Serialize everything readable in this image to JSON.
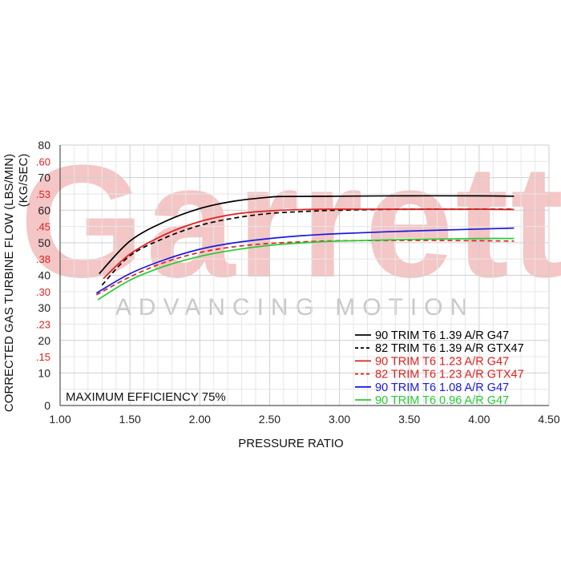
{
  "chart_data": {
    "type": "line",
    "xlabel": "PRESSURE RATIO",
    "ylabel": "CORRECTED GAS TURBINE FLOW (LBS/MIN)",
    "ylabel_secondary": "(KG/SEC)",
    "xlim": [
      1.0,
      4.5
    ],
    "ylim": [
      0,
      80
    ],
    "x_ticks": [
      "1.00",
      "1.50",
      "2.00",
      "2.50",
      "3.00",
      "3.50",
      "4.00",
      "4.50"
    ],
    "y_ticks": [
      "0",
      "10",
      "20",
      "30",
      "40",
      "50",
      "60",
      "70",
      "80"
    ],
    "y_ticks_secondary": [
      ".15",
      ".23",
      ".30",
      ".38",
      ".45",
      ".53",
      ".60"
    ],
    "grid": true,
    "legend_position": "bottom-right",
    "annotation": "MAXIMUM EFFICIENCY 75%",
    "watermark": {
      "brand": "Garrett",
      "tagline": "ADVANCING MOTION"
    },
    "series": [
      {
        "name": "90 TRIM T6 1.39 A/R G47",
        "color": "#000000",
        "dash": "solid",
        "x": [
          1.28,
          1.5,
          1.75,
          2.0,
          2.25,
          2.5,
          2.6,
          3.0,
          3.5,
          4.0,
          4.25
        ],
        "y": [
          40.5,
          50.5,
          56.5,
          60.5,
          62.8,
          64.0,
          64.2,
          64.3,
          64.4,
          64.4,
          64.3
        ]
      },
      {
        "name": "82 TRIM T6 1.39 A/R GTX47",
        "color": "#000000",
        "dash": "dashed",
        "x": [
          1.3,
          1.5,
          1.75,
          2.0,
          2.25,
          2.5,
          2.75,
          3.0,
          3.5,
          4.0,
          4.25
        ],
        "y": [
          37.0,
          46.0,
          51.5,
          55.3,
          57.6,
          59.0,
          59.6,
          60.0,
          60.3,
          60.3,
          60.3
        ]
      },
      {
        "name": "90 TRIM T6 1.23 A/R G47",
        "color": "#e02020",
        "dash": "solid",
        "x": [
          1.31,
          1.5,
          1.75,
          2.0,
          2.25,
          2.5,
          2.75,
          3.0,
          3.5,
          4.0,
          4.25
        ],
        "y": [
          39.0,
          46.5,
          52.5,
          56.5,
          58.8,
          59.8,
          60.2,
          60.3,
          60.3,
          60.3,
          60.2
        ]
      },
      {
        "name": "82 TRIM T6 1.23 A/R GTX47",
        "color": "#e02020",
        "dash": "dashed",
        "x": [
          1.26,
          1.5,
          1.75,
          2.0,
          2.25,
          2.5,
          2.75,
          3.0,
          3.5,
          4.0,
          4.25
        ],
        "y": [
          34.0,
          39.5,
          44.0,
          47.0,
          48.8,
          49.8,
          50.3,
          50.6,
          50.7,
          50.6,
          50.5
        ]
      },
      {
        "name": "90 TRIM T6 1.08 A/R G47",
        "color": "#1a1adf",
        "dash": "solid",
        "x": [
          1.26,
          1.5,
          1.75,
          2.0,
          2.25,
          2.5,
          2.75,
          3.0,
          3.5,
          4.0,
          4.25
        ],
        "y": [
          34.5,
          40.5,
          44.8,
          48.0,
          50.0,
          51.3,
          52.2,
          52.8,
          53.6,
          54.2,
          54.5
        ]
      },
      {
        "name": "90 TRIM T6 0.96 A/R G47",
        "color": "#22cc33",
        "dash": "solid",
        "x": [
          1.27,
          1.5,
          1.75,
          2.0,
          2.25,
          2.5,
          2.75,
          3.0,
          3.5,
          4.0,
          4.25
        ],
        "y": [
          32.5,
          38.5,
          42.8,
          45.8,
          47.8,
          49.2,
          50.0,
          50.5,
          51.0,
          51.3,
          51.3
        ]
      }
    ]
  }
}
